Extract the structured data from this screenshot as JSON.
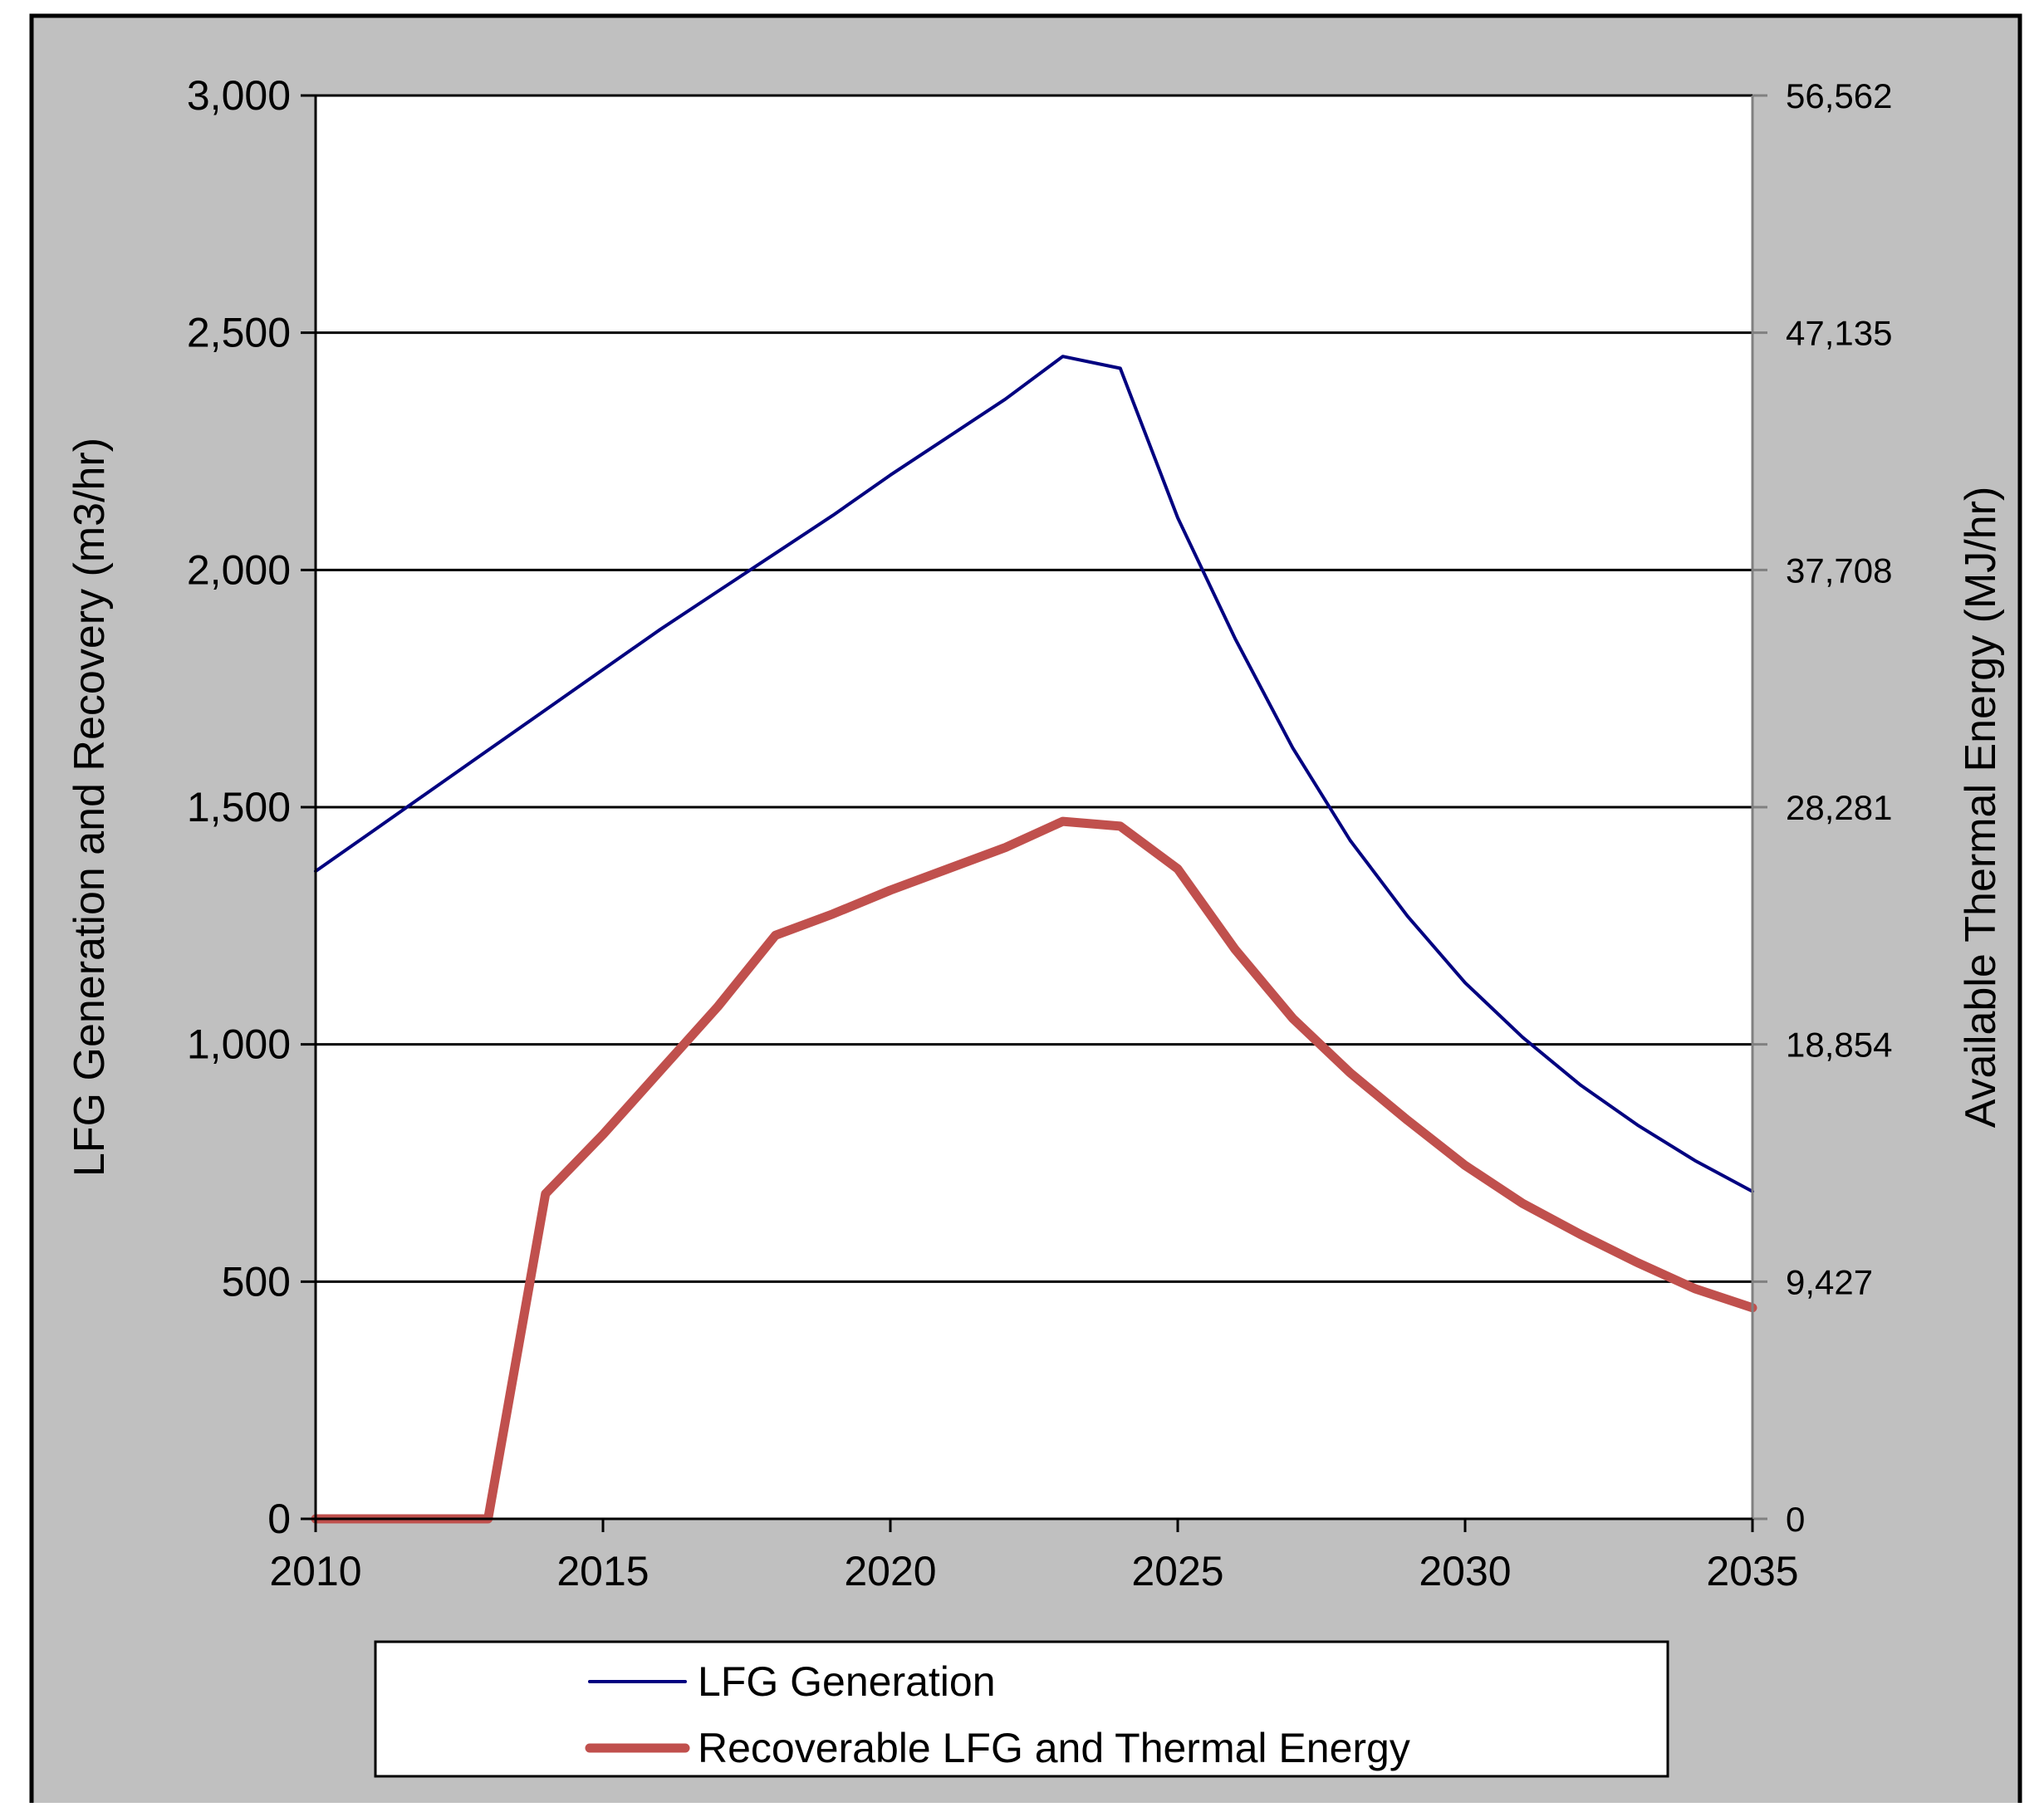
{
  "chart_data": {
    "type": "line",
    "title": "",
    "xlabel": "",
    "ylabel": "LFG  Generation and Recovery (m3/hr)",
    "y2label": "Available Thermal Energy (MJ/hr)",
    "xlim": [
      2010,
      2035
    ],
    "ylim": [
      0,
      3000
    ],
    "y2lim": [
      0,
      56562
    ],
    "x_ticks": [
      "2010",
      "2015",
      "2020",
      "2025",
      "2030",
      "2035"
    ],
    "y_ticks": [
      "0",
      "500",
      "1,000",
      "1,500",
      "2,000",
      "2,500",
      "3,000"
    ],
    "y2_ticks": [
      "0",
      "9,427",
      "18,854",
      "28,281",
      "37,708",
      "47,135",
      "56,562"
    ],
    "grid": true,
    "legend_position": "bottom",
    "series": [
      {
        "name": "LFG Generation",
        "color": "#000080",
        "x": [
          2010,
          2011,
          2012,
          2013,
          2014,
          2015,
          2016,
          2017,
          2018,
          2019,
          2020,
          2021,
          2022,
          2023,
          2024,
          2025,
          2026,
          2027,
          2028,
          2029,
          2030,
          2031,
          2032,
          2033,
          2034,
          2035
        ],
        "values": [
          1365,
          1450,
          1535,
          1620,
          1705,
          1790,
          1875,
          1955,
          2035,
          2115,
          2200,
          2280,
          2360,
          2450,
          2425,
          2110,
          1855,
          1625,
          1430,
          1270,
          1130,
          1015,
          915,
          830,
          755,
          690
        ]
      },
      {
        "name": "Recoverable LFG and Thermal Energy",
        "color": "#c0504d",
        "x": [
          2010,
          2011,
          2012,
          2013,
          2014,
          2015,
          2016,
          2017,
          2018,
          2019,
          2020,
          2021,
          2022,
          2023,
          2024,
          2025,
          2026,
          2027,
          2028,
          2029,
          2030,
          2031,
          2032,
          2033,
          2034,
          2035
        ],
        "values": [
          0,
          0,
          0,
          0,
          685,
          810,
          945,
          1080,
          1230,
          1275,
          1325,
          1370,
          1415,
          1470,
          1460,
          1370,
          1200,
          1055,
          940,
          840,
          745,
          665,
          600,
          540,
          485,
          445
        ]
      }
    ]
  }
}
